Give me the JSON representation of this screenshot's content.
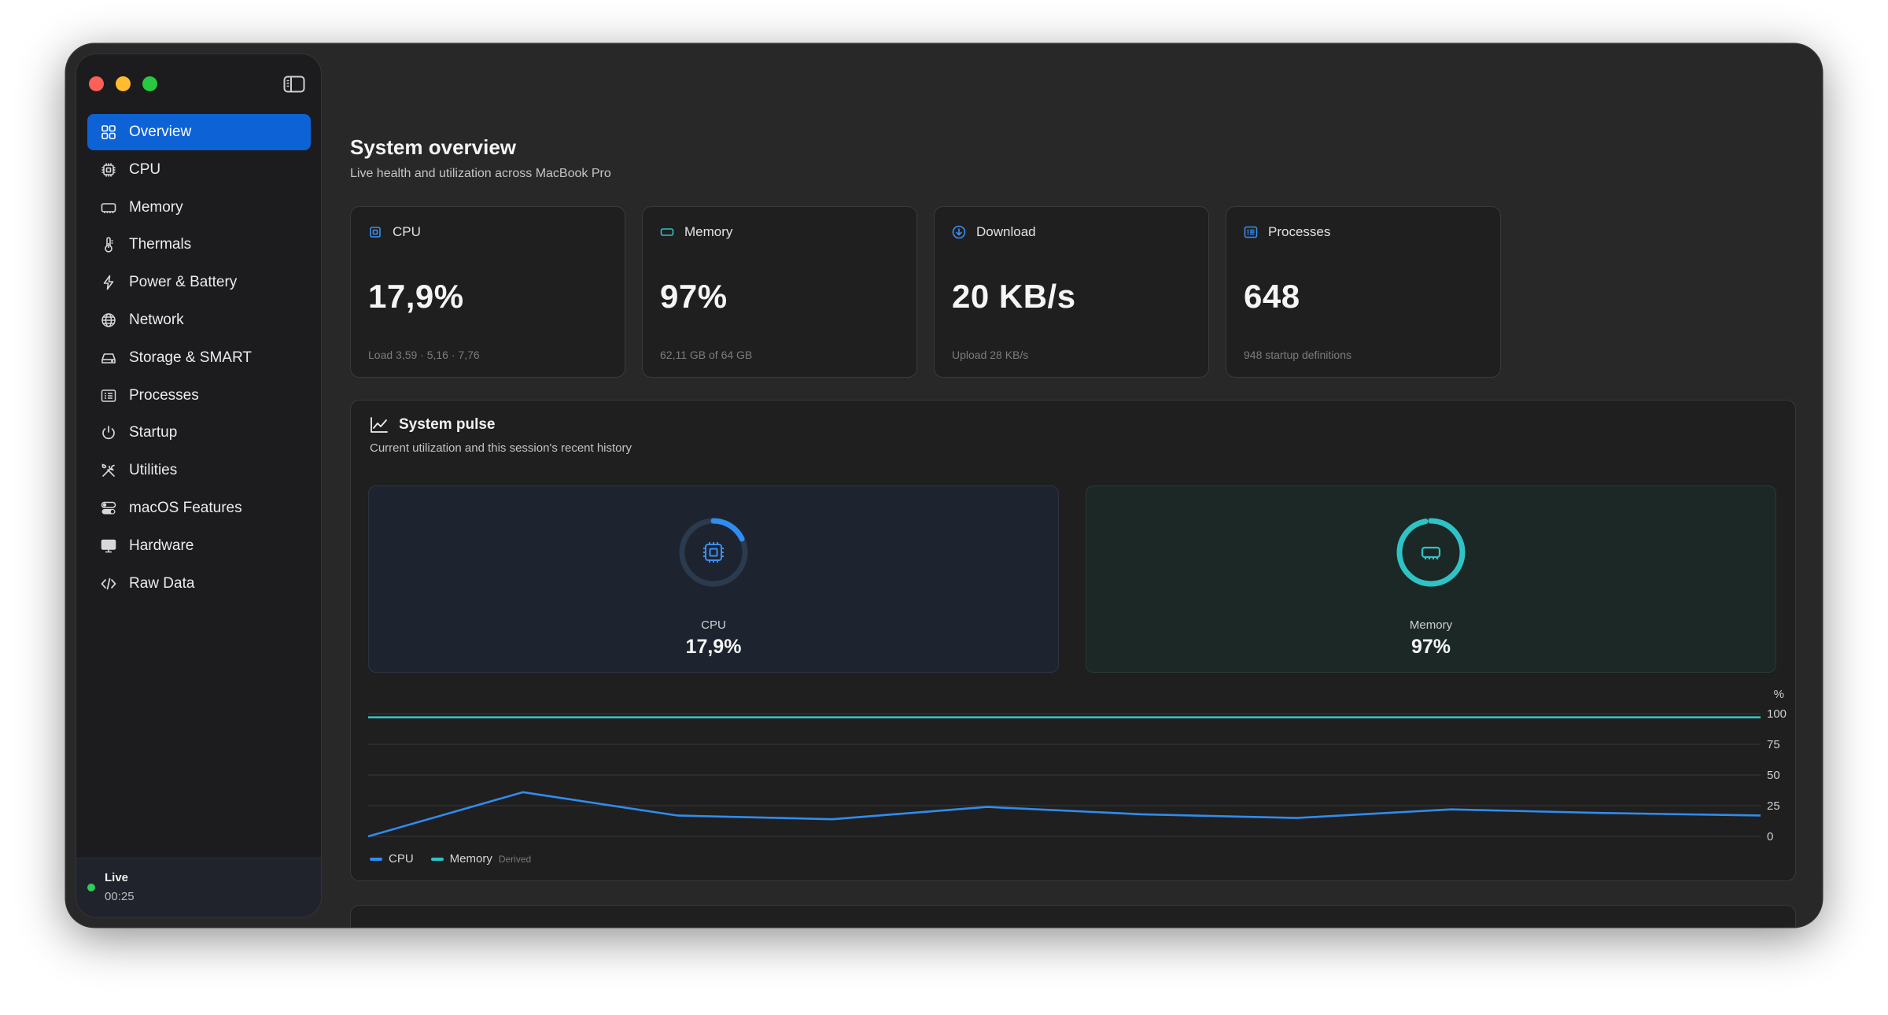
{
  "sidebar": {
    "items": [
      {
        "label": "Overview",
        "icon": "grid-icon",
        "active": true
      },
      {
        "label": "CPU",
        "icon": "cpu-icon"
      },
      {
        "label": "Memory",
        "icon": "memory-icon"
      },
      {
        "label": "Thermals",
        "icon": "thermometer-icon"
      },
      {
        "label": "Power & Battery",
        "icon": "bolt-icon"
      },
      {
        "label": "Network",
        "icon": "globe-icon"
      },
      {
        "label": "Storage & SMART",
        "icon": "drive-icon"
      },
      {
        "label": "Processes",
        "icon": "list-icon"
      },
      {
        "label": "Startup",
        "icon": "power-icon"
      },
      {
        "label": "Utilities",
        "icon": "tools-icon"
      },
      {
        "label": "macOS Features",
        "icon": "toggles-icon"
      },
      {
        "label": "Hardware",
        "icon": "display-icon"
      },
      {
        "label": "Raw Data",
        "icon": "code-icon"
      }
    ],
    "status": {
      "label": "Live",
      "time": "00:25"
    }
  },
  "header": {
    "title": "System overview",
    "subtitle": "Live health and utilization across MacBook Pro"
  },
  "stats": [
    {
      "label": "CPU",
      "value": "17,9%",
      "sub": "Load 3,59 · 5,16 · 7,76",
      "icon": "cpu-icon"
    },
    {
      "label": "Memory",
      "value": "97%",
      "sub": "62,11 GB of 64 GB",
      "icon": "memory-icon"
    },
    {
      "label": "Download",
      "value": "20 KB/s",
      "sub": "Upload 28 KB/s",
      "icon": "download-icon"
    },
    {
      "label": "Processes",
      "value": "648",
      "sub": "948 startup definitions",
      "icon": "list-icon"
    }
  ],
  "pulse": {
    "title": "System pulse",
    "subtitle": "Current utilization and this session's recent history",
    "gauges": [
      {
        "label": "CPU",
        "value": "17,9%",
        "fraction": 0.179,
        "color": "#2f8cf0"
      },
      {
        "label": "Memory",
        "value": "97%",
        "fraction": 0.97,
        "color": "#2ec4c6"
      }
    ]
  },
  "colors": {
    "accent": "#0d62d6",
    "cpu": "#2f8cf0",
    "memory": "#2ec4c6"
  },
  "chart_data": {
    "type": "line",
    "x": [
      0,
      1,
      2,
      3,
      4,
      5,
      6,
      7,
      8,
      9
    ],
    "series": [
      {
        "name": "CPU",
        "values": [
          0,
          36,
          17,
          14,
          24,
          18,
          15,
          22,
          19,
          17
        ],
        "color": "#2f8cf0"
      },
      {
        "name": "Memory",
        "values": [
          97,
          97,
          97,
          97,
          97,
          97,
          97,
          97,
          97,
          97
        ],
        "color": "#2ec4c6",
        "note": "Derived"
      }
    ],
    "ylabel": "%",
    "ylim": [
      0,
      100
    ],
    "yticks": [
      "100",
      "75",
      "50",
      "25",
      "0"
    ],
    "grid": true,
    "legend": "bottom-left"
  }
}
